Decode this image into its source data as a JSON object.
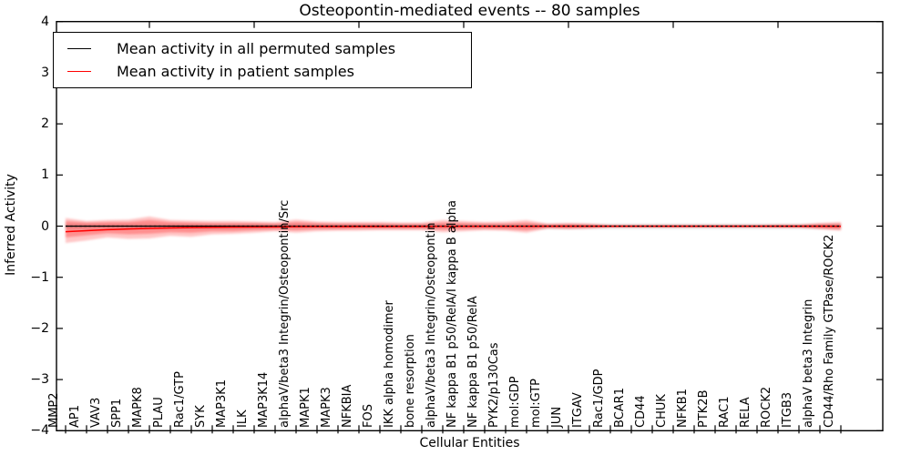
{
  "title": "Osteopontin-mediated events -- 80 samples",
  "axes": {
    "xlabel": "Cellular Entities",
    "ylabel": "Inferred Activity"
  },
  "legend": {
    "items": [
      {
        "label": "Mean activity in all permuted samples",
        "color": "#000000"
      },
      {
        "label": "Mean activity in patient samples",
        "color": "#ff0000"
      }
    ],
    "position": "upper left"
  },
  "colors": {
    "patient_line": "#ff0000",
    "permuted_line": "#000000",
    "zero_reference": "#000000",
    "patient_band": "#ff0000",
    "permuted_band": "#999999",
    "frame": "#000000",
    "background": "#ffffff"
  },
  "chart_data": {
    "type": "line",
    "title": "Osteopontin-mediated events -- 80 samples",
    "xlabel": "Cellular Entities",
    "ylabel": "Inferred Activity",
    "ylim": [
      -4,
      4
    ],
    "grid": false,
    "legend_position": "upper left",
    "ytick_values": [
      4,
      3,
      2,
      1,
      0,
      -1,
      -2,
      -3,
      -4
    ],
    "ytick_labels": [
      "4",
      "3",
      "2",
      "1",
      "0",
      "−1",
      "−2",
      "−3",
      "−4"
    ],
    "top_tick_indices": [
      4,
      9,
      14,
      19,
      24,
      29,
      34
    ],
    "x_categories": [
      "MMP2",
      "AP1",
      "VAV3",
      "SPP1",
      "MAPK8",
      "PLAU",
      "Rac1/GTP",
      "SYK",
      "MAP3K1",
      "ILK",
      "MAP3K14",
      "alphaV/beta3 Integrin/Osteopontin/Src",
      "MAPK1",
      "MAPK3",
      "NFKBIA",
      "FOS",
      "IKK alpha homodimer",
      "bone resorption",
      "alphaV/beta3 Integrin/Osteopontin",
      "NF kappa B1 p50/RelA/I kappa B alpha",
      "NF kappa B1 p50/RelA",
      "PYK2/p130Cas",
      "mol:GDP",
      "mol:GTP",
      "JUN",
      "ITGAV",
      "Rac1/GDP",
      "BCAR1",
      "CD44",
      "CHUK",
      "NFKB1",
      "PTK2B",
      "RAC1",
      "RELA",
      "ROCK2",
      "ITGB3",
      "alphaV beta3 Integrin",
      "CD44/Rho Family GTPase/ROCK2"
    ],
    "series": [
      {
        "name": "Mean activity in all permuted samples",
        "color": "#000000",
        "style": "solid",
        "width": 1.2,
        "values": [
          0,
          0,
          0,
          0,
          0,
          0,
          0,
          0,
          0,
          0,
          0,
          0,
          0,
          0,
          0,
          0,
          0,
          0,
          0,
          0,
          0,
          0,
          0,
          0,
          0,
          0,
          0,
          0,
          0,
          0,
          0,
          0,
          0,
          0,
          0,
          0,
          0,
          0
        ]
      },
      {
        "name": "Mean activity in patient samples",
        "color": "#ff0000",
        "style": "solid",
        "width": 1.5,
        "values": [
          -0.11,
          -0.09,
          -0.07,
          -0.055,
          -0.045,
          -0.035,
          -0.03,
          -0.025,
          -0.02,
          -0.018,
          -0.015,
          -0.012,
          -0.01,
          -0.01,
          -0.008,
          -0.008,
          -0.006,
          -0.006,
          -0.005,
          -0.005,
          -0.004,
          -0.004,
          -0.004,
          -0.003,
          -0.003,
          -0.003,
          -0.002,
          -0.002,
          -0.002,
          -0.002,
          -0.002,
          -0.002,
          -0.002,
          -0.002,
          -0.002,
          -0.002,
          -0.003,
          -0.004
        ]
      },
      {
        "name": "zero reference",
        "color": "#000000",
        "style": "dashed",
        "width": 1.2,
        "values": [
          0,
          0,
          0,
          0,
          0,
          0,
          0,
          0,
          0,
          0,
          0,
          0,
          0,
          0,
          0,
          0,
          0,
          0,
          0,
          0,
          0,
          0,
          0,
          0,
          0,
          0,
          0,
          0,
          0,
          0,
          0,
          0,
          0,
          0,
          0,
          0,
          0,
          0
        ]
      }
    ],
    "bands": [
      {
        "name": "permuted-activity-band",
        "color": "#999999",
        "opacity": 0.3,
        "upper": [
          0.04,
          0.04,
          0.04,
          0.04,
          0.04,
          0.04,
          0.04,
          0.04,
          0.04,
          0.04,
          0.04,
          0.04,
          0.04,
          0.04,
          0.04,
          0.04,
          0.04,
          0.04,
          0.04,
          0.04,
          0.04,
          0.04,
          0.04,
          0.04,
          0.04,
          0.04,
          0.04,
          0.04,
          0.04,
          0.04,
          0.04,
          0.04,
          0.04,
          0.04,
          0.04,
          0.04,
          0.04,
          0.04
        ],
        "lower": [
          -0.05,
          -0.05,
          -0.05,
          -0.05,
          -0.05,
          -0.05,
          -0.05,
          -0.05,
          -0.05,
          -0.05,
          -0.05,
          -0.05,
          -0.05,
          -0.05,
          -0.05,
          -0.05,
          -0.05,
          -0.05,
          -0.05,
          -0.05,
          -0.05,
          -0.05,
          -0.05,
          -0.05,
          -0.05,
          -0.05,
          -0.05,
          -0.05,
          -0.05,
          -0.05,
          -0.05,
          -0.05,
          -0.05,
          -0.05,
          -0.05,
          -0.05,
          -0.05,
          -0.05
        ]
      },
      {
        "name": "patient-activity-band-outer",
        "color": "#ff0000",
        "opacity": 0.22,
        "upper": [
          0.16,
          0.1,
          0.12,
          0.13,
          0.19,
          0.12,
          0.11,
          0.1,
          0.1,
          0.09,
          0.08,
          0.13,
          0.09,
          0.08,
          0.08,
          0.08,
          0.07,
          0.07,
          0.12,
          0.1,
          0.08,
          0.09,
          0.12,
          0.05,
          0.06,
          0.05,
          0.02,
          0.02,
          0.02,
          0.02,
          0.02,
          0.02,
          0.02,
          0.02,
          0.03,
          0.03,
          0.06,
          0.08
        ],
        "lower": [
          -0.33,
          -0.28,
          -0.22,
          -0.25,
          -0.24,
          -0.19,
          -0.21,
          -0.16,
          -0.15,
          -0.13,
          -0.1,
          -0.13,
          -0.1,
          -0.09,
          -0.09,
          -0.08,
          -0.08,
          -0.08,
          -0.12,
          -0.1,
          -0.08,
          -0.09,
          -0.13,
          -0.05,
          -0.06,
          -0.05,
          -0.02,
          -0.02,
          -0.02,
          -0.02,
          -0.02,
          -0.02,
          -0.02,
          -0.02,
          -0.03,
          -0.03,
          -0.06,
          -0.09
        ]
      },
      {
        "name": "patient-activity-band-inner",
        "color": "#ff0000",
        "opacity": 0.28,
        "upper": [
          0.1,
          0.07,
          0.08,
          0.08,
          0.12,
          0.08,
          0.07,
          0.06,
          0.06,
          0.06,
          0.05,
          0.08,
          0.06,
          0.05,
          0.05,
          0.05,
          0.04,
          0.04,
          0.07,
          0.06,
          0.05,
          0.05,
          0.07,
          0.03,
          0.04,
          0.03,
          0.015,
          0.015,
          0.015,
          0.015,
          0.015,
          0.015,
          0.015,
          0.015,
          0.02,
          0.02,
          0.04,
          0.05
        ],
        "lower": [
          -0.22,
          -0.18,
          -0.14,
          -0.16,
          -0.15,
          -0.12,
          -0.13,
          -0.1,
          -0.1,
          -0.08,
          -0.07,
          -0.08,
          -0.06,
          -0.06,
          -0.05,
          -0.05,
          -0.05,
          -0.05,
          -0.07,
          -0.06,
          -0.05,
          -0.06,
          -0.08,
          -0.03,
          -0.04,
          -0.03,
          -0.015,
          -0.015,
          -0.015,
          -0.015,
          -0.015,
          -0.015,
          -0.015,
          -0.015,
          -0.02,
          -0.02,
          -0.04,
          -0.06
        ]
      }
    ]
  }
}
